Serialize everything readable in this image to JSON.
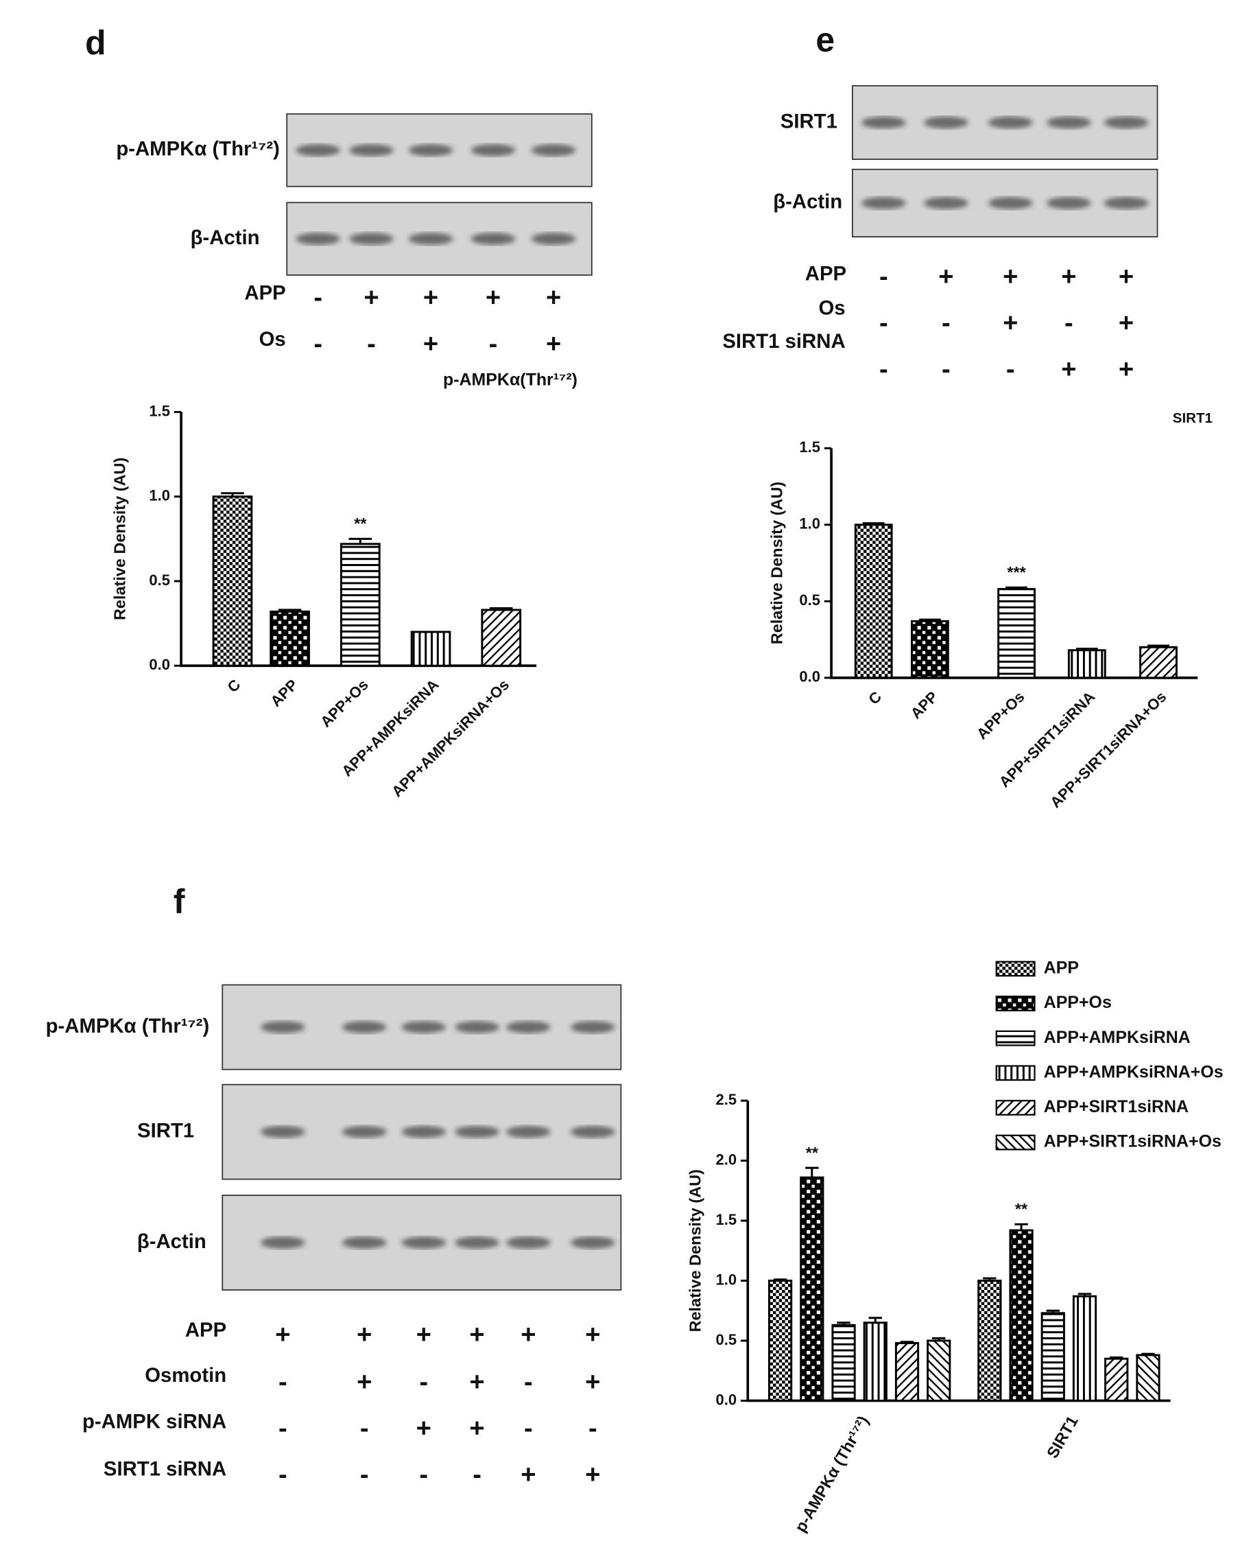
{
  "chart_data": [
    {
      "type": "bar",
      "title": "p-AMPKα(Thr¹⁷²)",
      "y_label": "Relative Density (AU)",
      "categories": [
        "C",
        "APP",
        "APP+Os",
        "APP+AMPKsiRNA",
        "APP+AMPKsiRNA+Os"
      ],
      "values": [
        1.0,
        0.32,
        0.72,
        0.2,
        0.33
      ],
      "errors": [
        0.02,
        0.01,
        0.03,
        0.0,
        0.01
      ],
      "annotations": [
        null,
        null,
        "**",
        null,
        null
      ],
      "ylim": [
        0,
        1.5
      ],
      "yticks": [
        {
          "value": 0,
          "label": "0.0"
        },
        {
          "value": 0.5,
          "label": "0.5"
        },
        {
          "value": 1,
          "label": "1.0"
        },
        {
          "value": 1.5,
          "label": "1.5"
        }
      ]
    },
    {
      "type": "bar",
      "title": "SIRT1",
      "y_label": "Relative Density (AU)",
      "categories": [
        "C",
        "APP",
        "APP+Os",
        "APP+SIRT1siRNA",
        "APP+SIRT1siRNA+Os"
      ],
      "values": [
        1.0,
        0.37,
        0.58,
        0.18,
        0.2
      ],
      "errors": [
        0.01,
        0.01,
        0.01,
        0.01,
        0.01
      ],
      "annotations": [
        null,
        null,
        "***",
        null,
        null
      ],
      "ylim": [
        0,
        1.5
      ],
      "yticks": [
        {
          "value": 0,
          "label": "0.0"
        },
        {
          "value": 0.5,
          "label": "0.5"
        },
        {
          "value": 1,
          "label": "1.0"
        },
        {
          "value": 1.5,
          "label": "1.5"
        }
      ]
    },
    {
      "type": "grouped_bar",
      "y_label": "Relative Density (AU)",
      "categories": [
        "p-AMPKα (Thr¹⁷²)",
        "SIRT1"
      ],
      "series": [
        {
          "name": "APP",
          "values": [
            1.0,
            1.0
          ],
          "errors": [
            0.01,
            0.02
          ],
          "annotations": [
            null,
            null
          ]
        },
        {
          "name": "APP+Os",
          "values": [
            1.86,
            1.42
          ],
          "errors": [
            0.08,
            0.05
          ],
          "annotations": [
            "**",
            "**"
          ]
        },
        {
          "name": "APP+AMPKsiRNA",
          "values": [
            0.63,
            0.73
          ],
          "errors": [
            0.02,
            0.02
          ],
          "annotations": [
            null,
            null
          ]
        },
        {
          "name": "APP+AMPKsiRNA+Os",
          "values": [
            0.65,
            0.87
          ],
          "errors": [
            0.04,
            0.02
          ],
          "annotations": [
            null,
            null
          ]
        },
        {
          "name": "APP+SIRT1siRNA",
          "values": [
            0.48,
            0.35
          ],
          "errors": [
            0.01,
            0.01
          ],
          "annotations": [
            null,
            null
          ]
        },
        {
          "name": "APP+SIRT1siRNA+Os",
          "values": [
            0.5,
            0.38
          ],
          "errors": [
            0.02,
            0.01
          ],
          "annotations": [
            null,
            null
          ]
        }
      ],
      "ylim": [
        0,
        2.5
      ],
      "yticks": [
        {
          "value": 0,
          "label": "0.0"
        },
        {
          "value": 0.5,
          "label": "0.5"
        },
        {
          "value": 1,
          "label": "1.0"
        },
        {
          "value": 1.5,
          "label": "1.5"
        },
        {
          "value": 2,
          "label": "2.0"
        },
        {
          "value": 2.5,
          "label": "2.5"
        }
      ]
    }
  ],
  "blots": [
    {
      "label": "d",
      "rows": [
        "p-AMPKα (Thr¹⁷²)",
        "β-Actin"
      ],
      "conditions": [
        {
          "name": "APP",
          "signs": [
            "-",
            "+",
            "+",
            "+",
            "+"
          ]
        },
        {
          "name": "Os",
          "signs": [
            "-",
            "-",
            "+",
            "-",
            "+"
          ]
        }
      ]
    },
    {
      "label": "e",
      "rows": [
        "SIRT1",
        "β-Actin"
      ],
      "conditions": [
        {
          "name": "APP",
          "signs": [
            "-",
            "+",
            "+",
            "+",
            "+"
          ]
        },
        {
          "name": "Os",
          "signs": [
            "-",
            "-",
            "+",
            "-",
            "+"
          ]
        },
        {
          "name": "SIRT1 siRNA",
          "signs": [
            "-",
            "-",
            "-",
            "+",
            "+"
          ]
        }
      ]
    },
    {
      "label": "f",
      "rows": [
        "p-AMPKα (Thr¹⁷²)",
        "SIRT1",
        "β-Actin"
      ],
      "conditions": [
        {
          "name": "APP",
          "signs": [
            "+",
            "+",
            "+",
            "+",
            "+",
            "+"
          ]
        },
        {
          "name": "Osmotin",
          "signs": [
            "-",
            "+",
            "-",
            "+",
            "-",
            "+"
          ]
        },
        {
          "name": "p-AMPK siRNA",
          "signs": [
            "-",
            "-",
            "+",
            "+",
            "-",
            "-"
          ]
        },
        {
          "name": "SIRT1 siRNA",
          "signs": [
            "-",
            "-",
            "-",
            "-",
            "+",
            "+"
          ]
        }
      ]
    }
  ]
}
